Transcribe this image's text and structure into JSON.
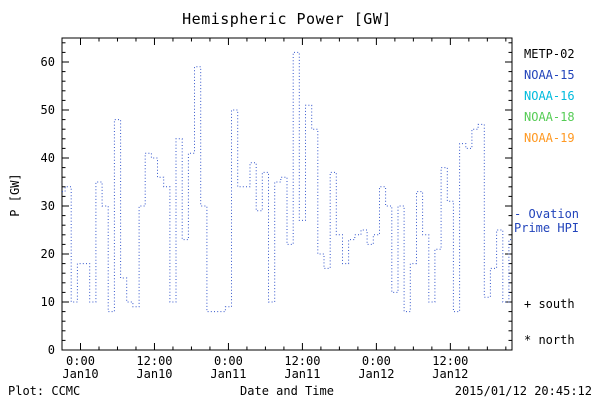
{
  "title": "Hemispheric Power [GW]",
  "footer": {
    "plot_source": "Plot: CCMC",
    "xlabel": "Date and Time",
    "timestamp": "2015/01/12 20:45:12"
  },
  "legend": {
    "satellites": [
      {
        "label": "METP-02",
        "color": "#000000"
      },
      {
        "label": "NOAA-15",
        "color": "#2244bb"
      },
      {
        "label": "NOAA-16",
        "color": "#00bbdd"
      },
      {
        "label": "NOAA-18",
        "color": "#55cc55"
      },
      {
        "label": "NOAA-19",
        "color": "#ff9922"
      }
    ],
    "ovation": {
      "line1": "- Ovation",
      "line2": "Prime HPI",
      "color": "#2244bb"
    },
    "south_label": "+ south",
    "north_label": "* north"
  },
  "chart_data": {
    "type": "line",
    "style": "dotted step/histogram line",
    "title": "Hemispheric Power [GW]",
    "xlabel": "Date and Time",
    "ylabel": "P [GW]",
    "ylim": [
      0,
      65
    ],
    "yticks": [
      0,
      10,
      20,
      30,
      40,
      50,
      60
    ],
    "xlim": [
      -3,
      70
    ],
    "x_unit": "hours relative to 2015-01-10 00:00",
    "xticks": [
      {
        "hour": 0,
        "line1": "0:00",
        "line2": "Jan10"
      },
      {
        "hour": 12,
        "line1": "12:00",
        "line2": "Jan10"
      },
      {
        "hour": 24,
        "line1": "0:00",
        "line2": "Jan11"
      },
      {
        "hour": 36,
        "line1": "12:00",
        "line2": "Jan11"
      },
      {
        "hour": 48,
        "line1": "0:00",
        "line2": "Jan12"
      },
      {
        "hour": 60,
        "line1": "12:00",
        "line2": "Jan12"
      }
    ],
    "grid": false,
    "legend_position": "right",
    "line_color": "#3355cc",
    "values_note": "Hemispheric power [GW], evenly spaced samples spanning xlim (values estimated from plot)",
    "values": [
      33,
      34,
      10,
      18,
      18,
      10,
      35,
      30,
      8,
      48,
      15,
      10,
      9,
      30,
      41,
      40,
      36,
      34,
      10,
      44,
      23,
      41,
      59,
      30,
      8,
      8,
      8,
      9,
      50,
      34,
      34,
      39,
      29,
      37,
      10,
      35,
      36,
      22,
      62,
      27,
      51,
      46,
      20,
      17,
      37,
      24,
      18,
      23,
      24,
      25,
      22,
      24,
      34,
      30,
      12,
      30,
      8,
      18,
      33,
      24,
      10,
      21,
      38,
      31,
      8,
      43,
      42,
      46,
      47,
      11,
      17,
      25,
      10,
      23
    ]
  }
}
